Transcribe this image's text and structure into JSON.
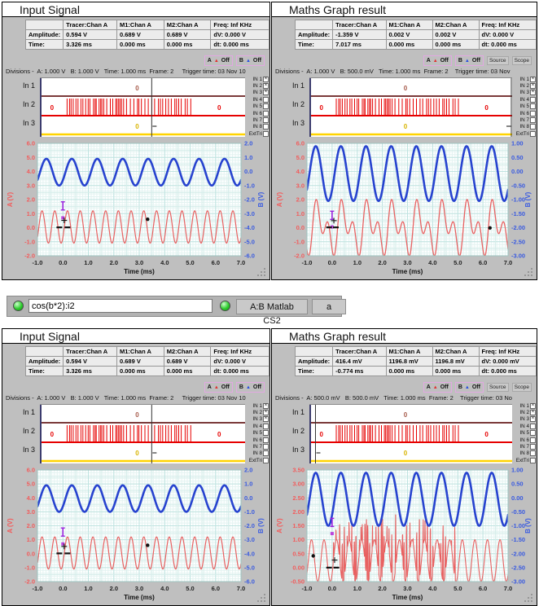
{
  "colors": {
    "panel_bg": "#bfbfbf",
    "led_green": "#2ecc2e",
    "wave_a_red": "#e86161",
    "wave_b_blue": "#2743cf",
    "axis_a_red": "#f25c5c",
    "axis_b_blue": "#3a5be0",
    "logic_in1": "#7b3a3a",
    "logic_in2": "#e60000",
    "logic_in3": "#ffd400",
    "grid_minor": "#e4f3f1",
    "grid_major": "#bfe3e0",
    "cursor": "#333333"
  },
  "formula_bar": {
    "expression": "cos(b*2):i2",
    "apply_button": "A:B Matlab CS2",
    "channel_button": "a"
  },
  "logic_checkboxes": {
    "items": [
      {
        "label": "IN 1",
        "checked": true
      },
      {
        "label": "IN 2",
        "checked": true
      },
      {
        "label": "IN 3",
        "checked": true
      },
      {
        "label": "IN 4",
        "checked": false
      },
      {
        "label": "IN 5",
        "checked": false
      },
      {
        "label": "IN 6",
        "checked": false
      },
      {
        "label": "IN 7",
        "checked": false
      },
      {
        "label": "IN 8",
        "checked": false
      },
      {
        "label": "ExtTri",
        "checked": false
      }
    ]
  },
  "panels": [
    {
      "title": "Input Signal",
      "table": {
        "headers": [
          "",
          "Tracer:Chan A",
          "M1:Chan A",
          "M2:Chan A",
          "Freq: Inf KHz"
        ],
        "rows": [
          [
            "Amplitude:",
            "0.594 V",
            "0.689 V",
            "0.689 V",
            "dV: 0.000 V"
          ],
          [
            "Time:",
            "3.326 ms",
            "0.000 ms",
            "0.000 ms",
            "dt:  0.000 ms"
          ]
        ]
      },
      "indicators": {
        "a_label": "A",
        "a_state": "Off",
        "b_label": "B",
        "b_state": "Off",
        "source_label": "Source",
        "scope_label": "Scope",
        "show_source_scope": false
      },
      "divisions": "Divisions -  A: 1.000 V   B: 1.000 V   Time: 1.000 ms  Frame: 2     Trigger time: 03 Nov 10",
      "logic": {
        "channels": [
          "In 1",
          "In 2",
          "In 3"
        ],
        "cursor": 0.545,
        "zero_label": "0",
        "pulse_region": [
          0,
          5
        ]
      },
      "chart_data": {
        "type": "line",
        "xlabel": "Time (ms)",
        "ylabel_left": "A (V)",
        "ylabel_right": "B (V)",
        "x_ticks": [
          "-1.0",
          "0.0",
          "1.0",
          "2.0",
          "3.0",
          "4.0",
          "5.0",
          "6.0",
          "7.0"
        ],
        "x_range": [
          -1,
          7
        ],
        "left_ticks": [
          "6.0",
          "5.0",
          "4.0",
          "3.0",
          "2.0",
          "1.0",
          "0.0",
          "-1.0",
          "-2.0"
        ],
        "left_range": [
          6,
          -2
        ],
        "right_ticks": [
          "2.0",
          "1.0",
          "0.0",
          "-1.0",
          "-2.0",
          "-3.0",
          "-4.0",
          "-5.0",
          "-6.0"
        ],
        "series": [
          {
            "name": "channel-b",
            "color": "#2743cf",
            "width": 2.6,
            "type": "sine",
            "offset": 3.95,
            "amp": 0.95,
            "freq": 1,
            "phase": 0.1
          },
          {
            "name": "channel-a",
            "color": "#e86161",
            "width": 1.2,
            "type": "sine",
            "offset": 0.05,
            "amp": 1.15,
            "freq": 2,
            "phase": 0.055
          }
        ],
        "markers": [
          {
            "type": "ibeam",
            "x": 0.0,
            "y": 1.55,
            "color": "#9922dd"
          },
          {
            "type": "square",
            "x": 0.0,
            "y": 0.7,
            "color": "#bb44dd"
          },
          {
            "type": "cross",
            "x": 0.05,
            "y": 0.52,
            "color": "#111111"
          },
          {
            "type": "hbar",
            "x": -0.14,
            "y": 0.02,
            "color": "#111111"
          },
          {
            "type": "hbar",
            "x": 0.18,
            "y": 0.02,
            "color": "#111111"
          },
          {
            "type": "dot",
            "x": 3.33,
            "y": 0.6,
            "color": "#111111"
          }
        ]
      }
    },
    {
      "title": "Maths Graph result",
      "table": {
        "headers": [
          "",
          "Tracer:Chan A",
          "M1:Chan A",
          "M2:Chan A",
          "Freq: Inf KHz"
        ],
        "rows": [
          [
            "Amplitude:",
            "-1.359 V",
            "0.002 V",
            "0.002 V",
            "dV: 0.000 V"
          ],
          [
            "Time:",
            "7.017 ms",
            "0.000 ms",
            "0.000 ms",
            "dt:  0.000 ms"
          ]
        ]
      },
      "indicators": {
        "a_label": "A",
        "a_state": "Off",
        "b_label": "B",
        "b_state": "Off",
        "source_label": "Source",
        "scope_label": "Scope",
        "show_source_scope": true
      },
      "divisions": "Divisions -  A: 1.000 V   B: 500.0 mV   Time: 1.000 ms  Frame: 2    Trigger time: 03 Nov",
      "logic": {
        "channels": [
          "In 1",
          "In 2",
          "In 3"
        ],
        "cursor": 0.998,
        "zero_label": "0",
        "pulse_region": [
          0,
          5
        ]
      },
      "chart_data": {
        "type": "line",
        "xlabel": "Time (ms)",
        "ylabel_left": "A (V)",
        "ylabel_right": "B (V)",
        "x_ticks": [
          "-1.0",
          "0.0",
          "1.0",
          "2.0",
          "3.0",
          "4.0",
          "5.0",
          "6.0",
          "7.0"
        ],
        "x_range": [
          -1,
          7
        ],
        "left_ticks": [
          "6.0",
          "5.0",
          "4.0",
          "3.0",
          "2.0",
          "1.0",
          "0.0",
          "-1.0",
          "-2.0"
        ],
        "left_range": [
          6,
          -2
        ],
        "right_ticks": [
          "1.00",
          "0.50",
          "0.00",
          "-0.50",
          "-1.00",
          "-1.50",
          "-2.00",
          "-2.50",
          "-3.00"
        ],
        "series": [
          {
            "name": "channel-b",
            "color": "#2743cf",
            "width": 2.6,
            "type": "sine",
            "offset": 3.85,
            "amp": 1.95,
            "freq": 1,
            "phase": 0.1
          },
          {
            "name": "maths-result",
            "color": "#e86161",
            "width": 1.3,
            "type": "sum2",
            "offset": 0,
            "a1": 1.14,
            "f1": 1,
            "p1": 0.22,
            "a2": 1.14,
            "f2": 2,
            "p2": 0.22
          }
        ],
        "markers": [
          {
            "type": "ibeam",
            "x": 0.0,
            "y": 0.88,
            "color": "#9922dd"
          },
          {
            "type": "square",
            "x": 0.0,
            "y": 0.05,
            "color": "#bb44dd"
          },
          {
            "type": "cross",
            "x": 0.07,
            "y": 0.5,
            "color": "#111111"
          },
          {
            "type": "hbar",
            "x": -0.12,
            "y": 0.02,
            "color": "#111111"
          },
          {
            "type": "hbar",
            "x": 0.15,
            "y": 0.02,
            "color": "#111111"
          },
          {
            "type": "dot",
            "x": 6.28,
            "y": -0.02,
            "color": "#111111"
          }
        ]
      }
    },
    {
      "title": "Input Signal",
      "table": {
        "headers": [
          "",
          "Tracer:Chan A",
          "M1:Chan A",
          "M2:Chan A",
          "Freq: Inf KHz"
        ],
        "rows": [
          [
            "Amplitude:",
            "0.594 V",
            "0.689 V",
            "0.689 V",
            "dV: 0.000 V"
          ],
          [
            "Time:",
            "3.326 ms",
            "0.000 ms",
            "0.000 ms",
            "dt:  0.000 ms"
          ]
        ]
      },
      "indicators": {
        "a_label": "A",
        "a_state": "Off",
        "b_label": "B",
        "b_state": "Off",
        "source_label": "Source",
        "scope_label": "Scope",
        "show_source_scope": false
      },
      "divisions": "Divisions -  A: 1.000 V   B: 1.000 V   Time: 1.000 ms  Frame: 2     Trigger time: 03 Nov 10",
      "logic": {
        "channels": [
          "In 1",
          "In 2",
          "In 3"
        ],
        "cursor": 0.545,
        "zero_label": "0",
        "pulse_region": [
          0,
          5
        ]
      },
      "chart_data": {
        "type": "line",
        "xlabel": "Time (ms)",
        "ylabel_left": "A (V)",
        "ylabel_right": "B (V)",
        "x_ticks": [
          "-1.0",
          "0.0",
          "1.0",
          "2.0",
          "3.0",
          "4.0",
          "5.0",
          "6.0",
          "7.0"
        ],
        "x_range": [
          -1,
          7
        ],
        "left_ticks": [
          "6.0",
          "5.0",
          "4.0",
          "3.0",
          "2.0",
          "1.0",
          "0.0",
          "-1.0",
          "-2.0"
        ],
        "left_range": [
          6,
          -2
        ],
        "right_ticks": [
          "2.0",
          "1.0",
          "0.0",
          "-1.0",
          "-2.0",
          "-3.0",
          "-4.0",
          "-5.0",
          "-6.0"
        ],
        "series": [
          {
            "name": "channel-b",
            "color": "#2743cf",
            "width": 2.6,
            "type": "sine",
            "offset": 3.95,
            "amp": 0.95,
            "freq": 1,
            "phase": 0.1
          },
          {
            "name": "channel-a",
            "color": "#e86161",
            "width": 1.2,
            "type": "sine",
            "offset": 0.05,
            "amp": 1.15,
            "freq": 2,
            "phase": 0.055
          }
        ],
        "markers": [
          {
            "type": "ibeam",
            "x": 0.0,
            "y": 1.55,
            "color": "#9922dd"
          },
          {
            "type": "square",
            "x": 0.0,
            "y": 0.7,
            "color": "#bb44dd"
          },
          {
            "type": "cross",
            "x": 0.05,
            "y": 0.52,
            "color": "#111111"
          },
          {
            "type": "hbar",
            "x": -0.14,
            "y": 0.02,
            "color": "#111111"
          },
          {
            "type": "hbar",
            "x": 0.18,
            "y": 0.02,
            "color": "#111111"
          },
          {
            "type": "dot",
            "x": 3.33,
            "y": 0.6,
            "color": "#111111"
          }
        ]
      }
    },
    {
      "title": "Maths Graph result",
      "table": {
        "headers": [
          "",
          "Tracer:Chan A",
          "M1:Chan A",
          "M2:Chan A",
          "Freq: Inf KHz"
        ],
        "rows": [
          [
            "Amplitude:",
            "416.4 mV",
            "1196.8 mV",
            "1196.8 mV",
            "dV: 0.000 mV"
          ],
          [
            "Time:",
            "-0.774 ms",
            "0.000 ms",
            "0.000 ms",
            "dt:  0.000 ms"
          ]
        ]
      },
      "indicators": {
        "a_label": "A",
        "a_state": "Off",
        "b_label": "B",
        "b_state": "Off",
        "source_label": "Source",
        "scope_label": "Scope",
        "show_source_scope": true
      },
      "divisions": "Divisions -  A: 500.0 mV   B: 500.0 mV   Time: 1.000 ms  Frame: 2    Trigger time: 03 No",
      "logic": {
        "channels": [
          "In 1",
          "In 2",
          "In 3"
        ],
        "cursor": 0.03,
        "zero_label": "0",
        "pulse_region": [
          0,
          5
        ]
      },
      "chart_data": {
        "type": "line",
        "xlabel": "Time (ms)",
        "ylabel_left": "A (V)",
        "ylabel_right": "B (V)",
        "x_ticks": [
          "-1.0",
          "0.0",
          "1.0",
          "2.0",
          "3.0",
          "4.0",
          "5.0",
          "6.0",
          "7.0"
        ],
        "x_range": [
          -1,
          7
        ],
        "left_ticks": [
          "3.50",
          "3.00",
          "2.50",
          "2.00",
          "1.50",
          "1.00",
          "0.50",
          "0.00",
          "-0.50"
        ],
        "left_range": [
          3.5,
          -0.5
        ],
        "right_ticks": [
          "1.00",
          "0.50",
          "0.00",
          "-0.50",
          "-1.00",
          "-1.50",
          "-2.00",
          "-2.50",
          "-3.00"
        ],
        "series": [
          {
            "name": "channel-b",
            "color": "#2743cf",
            "width": 2.6,
            "type": "sine",
            "offset": 2.45,
            "amp": 0.95,
            "freq": 1,
            "phase": 0.1
          },
          {
            "name": "maths-result",
            "color": "#e86161",
            "width": 1.1,
            "type": "spiky",
            "offset": 0.25,
            "amp": 0.75,
            "freq": 2,
            "phase": 0.055,
            "spike_region": [
              0,
              5
            ],
            "spike_width": 0.018
          }
        ],
        "markers": [
          {
            "type": "ibeam",
            "x": 0.0,
            "y": 1.62,
            "color": "#9922dd"
          },
          {
            "type": "square",
            "x": 0.0,
            "y": 1.22,
            "color": "#bb44dd"
          },
          {
            "type": "dot",
            "x": -0.75,
            "y": 0.42,
            "color": "#111111"
          },
          {
            "type": "cross",
            "x": 0.1,
            "y": 0.27,
            "color": "#111111"
          },
          {
            "type": "hbar",
            "x": -0.12,
            "y": 0.0,
            "color": "#111111"
          },
          {
            "type": "hbar",
            "x": 0.17,
            "y": 0.0,
            "color": "#111111"
          }
        ]
      }
    }
  ]
}
